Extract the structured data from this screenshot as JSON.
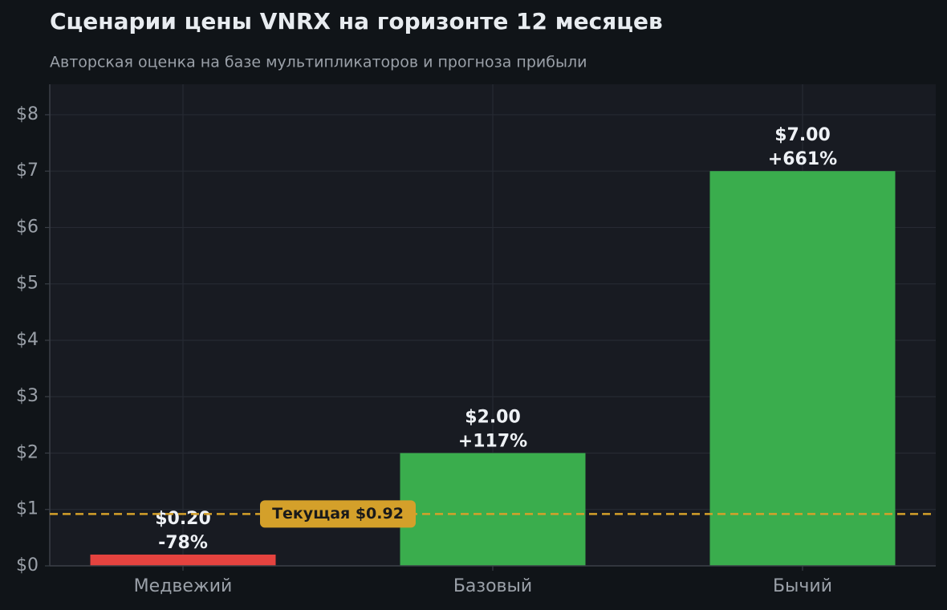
{
  "chart_data": {
    "type": "bar",
    "title": "Сценарии цены VNRX на горизонте 12 месяцев",
    "subtitle": "Авторская оценка на базе мультипликаторов и прогноза прибыли",
    "categories": [
      "Медвежий",
      "Базовый",
      "Бычий"
    ],
    "values": [
      0.2,
      2.0,
      7.0
    ],
    "value_labels": [
      "$0.20",
      "$2.00",
      "$7.00"
    ],
    "change_labels": [
      "-78%",
      "+117%",
      "+661%"
    ],
    "colors": [
      "#e5433f",
      "#3aad4d",
      "#3aad4d"
    ],
    "reference_line": {
      "value": 0.92,
      "label": "Текущая $0.92",
      "color": "#d4a02a"
    },
    "ylim": [
      0,
      8.54
    ],
    "yticks": [
      {
        "value": 0,
        "label": "$0"
      },
      {
        "value": 1,
        "label": "$1"
      },
      {
        "value": 2,
        "label": "$2"
      },
      {
        "value": 3,
        "label": "$3"
      },
      {
        "value": 4,
        "label": "$4"
      },
      {
        "value": 5,
        "label": "$5"
      },
      {
        "value": 6,
        "label": "$6"
      },
      {
        "value": 7,
        "label": "$7"
      },
      {
        "value": 8,
        "label": "$8"
      }
    ],
    "grid": true
  }
}
